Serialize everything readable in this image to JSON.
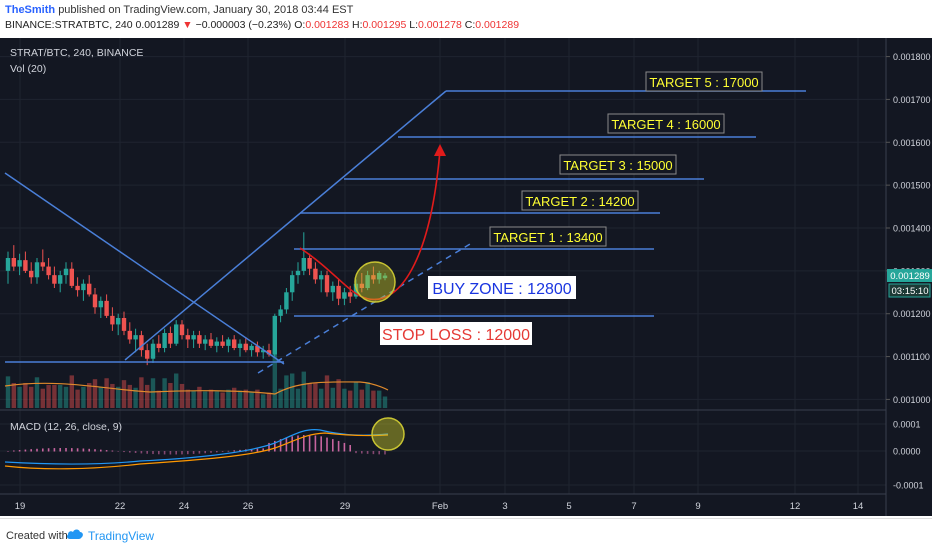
{
  "header": {
    "author": "TheSmith",
    "published_text": "published on TradingView.com, January 30, 2018 03:44 EST",
    "symbol_line": "BINANCE:STRATBTC, 240",
    "last": "0.001289",
    "change_arrow": "▼",
    "change": "−0.000003 (−0.23%)",
    "o_label": "O:",
    "o_value": "0.001283",
    "h_label": "H:",
    "h_value": "0.001295",
    "l_label": "L:",
    "l_value": "0.001278",
    "c_label": "C:",
    "c_value": "0.001289"
  },
  "main_pane": {
    "title": "STRAT/BTC, 240, BINANCE",
    "vol_label": "Vol (20)",
    "price_badge": "0.001289",
    "time_badge": "03:15:10",
    "y_ticks": [
      "0.001800",
      "0.001700",
      "0.001600",
      "0.001500",
      "0.001400",
      "0.001300",
      "0.001200",
      "0.001100",
      "0.001000"
    ]
  },
  "macd_pane": {
    "title": "MACD (12, 26, close, 9)",
    "y_ticks": [
      "0.0001",
      "0.0000",
      "-0.0001"
    ]
  },
  "x_axis": {
    "ticks": [
      "19",
      "22",
      "24",
      "26",
      "29",
      "Feb",
      "3",
      "5",
      "7",
      "9",
      "12",
      "14"
    ]
  },
  "annotations": {
    "target5": "TARGET 5 : 17000",
    "target4": "TARGET 4 : 16000",
    "target3": "TARGET 3 : 15000",
    "target2": "TARGET 2 : 14200",
    "target1": "TARGET 1 : 13400",
    "buy_zone": "BUY ZONE : 12800",
    "stop_loss": "STOP LOSS : 12000"
  },
  "footer": {
    "created_with": "Created with",
    "brand": "TradingView"
  },
  "colors": {
    "background": "#131722",
    "line": "#4a7fd8",
    "up": "#26a69a",
    "down": "#ef5350",
    "target_text": "#ffff33",
    "buy_zone_text": "#1a35e0",
    "stop_loss_text": "#e53935"
  },
  "chart_data": {
    "type": "candlestick",
    "title": "STRAT/BTC, 240, BINANCE",
    "y_range": [
      0.00098,
      0.00182
    ],
    "x_ticks": [
      "19",
      "22",
      "24",
      "26",
      "29",
      "Feb",
      "3",
      "5",
      "7",
      "9",
      "12",
      "14"
    ],
    "last_price": 0.001289,
    "ohlc_last": {
      "open": 0.001283,
      "high": 0.001295,
      "low": 0.001278,
      "close": 0.001289
    },
    "levels": [
      {
        "label": "TARGET 5 : 17000",
        "price": 0.0017
      },
      {
        "label": "TARGET 4 : 16000",
        "price": 0.0016
      },
      {
        "label": "TARGET 3 : 15000",
        "price": 0.0015
      },
      {
        "label": "TARGET 2 : 14200",
        "price": 0.00142
      },
      {
        "label": "TARGET 1 : 13400",
        "price": 0.00134
      },
      {
        "label": "BUY ZONE : 12800",
        "price": 0.00128
      },
      {
        "label": "STOP LOSS : 12000",
        "price": 0.0012
      }
    ],
    "candles": [
      {
        "o": 0.0013,
        "h": 0.001345,
        "l": 0.00127,
        "c": 0.00133
      },
      {
        "o": 0.00133,
        "h": 0.00136,
        "l": 0.0013,
        "c": 0.00131
      },
      {
        "o": 0.00131,
        "h": 0.00134,
        "l": 0.00129,
        "c": 0.001325
      },
      {
        "o": 0.001325,
        "h": 0.001345,
        "l": 0.001295,
        "c": 0.0013
      },
      {
        "o": 0.0013,
        "h": 0.00132,
        "l": 0.00127,
        "c": 0.001285
      },
      {
        "o": 0.001285,
        "h": 0.00133,
        "l": 0.00127,
        "c": 0.00132
      },
      {
        "o": 0.00132,
        "h": 0.00135,
        "l": 0.0013,
        "c": 0.00131
      },
      {
        "o": 0.00131,
        "h": 0.00133,
        "l": 0.00128,
        "c": 0.00129
      },
      {
        "o": 0.00129,
        "h": 0.00131,
        "l": 0.00126,
        "c": 0.00127
      },
      {
        "o": 0.00127,
        "h": 0.0013,
        "l": 0.00125,
        "c": 0.00129
      },
      {
        "o": 0.00129,
        "h": 0.00132,
        "l": 0.00127,
        "c": 0.001305
      },
      {
        "o": 0.001305,
        "h": 0.00132,
        "l": 0.00126,
        "c": 0.001265
      },
      {
        "o": 0.001265,
        "h": 0.001285,
        "l": 0.00124,
        "c": 0.001255
      },
      {
        "o": 0.001255,
        "h": 0.00128,
        "l": 0.00123,
        "c": 0.00127
      },
      {
        "o": 0.00127,
        "h": 0.00129,
        "l": 0.00124,
        "c": 0.001245
      },
      {
        "o": 0.001245,
        "h": 0.00126,
        "l": 0.0012,
        "c": 0.001215
      },
      {
        "o": 0.001215,
        "h": 0.00124,
        "l": 0.00119,
        "c": 0.00123
      },
      {
        "o": 0.00123,
        "h": 0.001245,
        "l": 0.00119,
        "c": 0.001195
      },
      {
        "o": 0.001195,
        "h": 0.001215,
        "l": 0.00116,
        "c": 0.001175
      },
      {
        "o": 0.001175,
        "h": 0.0012,
        "l": 0.00115,
        "c": 0.00119
      },
      {
        "o": 0.00119,
        "h": 0.001205,
        "l": 0.00115,
        "c": 0.00116
      },
      {
        "o": 0.00116,
        "h": 0.00118,
        "l": 0.00113,
        "c": 0.00114
      },
      {
        "o": 0.00114,
        "h": 0.001165,
        "l": 0.00111,
        "c": 0.00115
      },
      {
        "o": 0.00115,
        "h": 0.00116,
        "l": 0.0011,
        "c": 0.001115
      },
      {
        "o": 0.001115,
        "h": 0.00113,
        "l": 0.00108,
        "c": 0.001095
      },
      {
        "o": 0.001095,
        "h": 0.00114,
        "l": 0.001085,
        "c": 0.00113
      },
      {
        "o": 0.00113,
        "h": 0.00115,
        "l": 0.00111,
        "c": 0.00112
      },
      {
        "o": 0.00112,
        "h": 0.001165,
        "l": 0.00111,
        "c": 0.001155
      },
      {
        "o": 0.001155,
        "h": 0.00117,
        "l": 0.00112,
        "c": 0.00113
      },
      {
        "o": 0.00113,
        "h": 0.001185,
        "l": 0.001125,
        "c": 0.001175
      },
      {
        "o": 0.001175,
        "h": 0.001185,
        "l": 0.00114,
        "c": 0.00115
      },
      {
        "o": 0.00115,
        "h": 0.001165,
        "l": 0.00112,
        "c": 0.00114
      },
      {
        "o": 0.00114,
        "h": 0.00116,
        "l": 0.00112,
        "c": 0.00115
      },
      {
        "o": 0.00115,
        "h": 0.00116,
        "l": 0.00112,
        "c": 0.00113
      },
      {
        "o": 0.00113,
        "h": 0.00115,
        "l": 0.001115,
        "c": 0.00114
      },
      {
        "o": 0.00114,
        "h": 0.001155,
        "l": 0.00112,
        "c": 0.001125
      },
      {
        "o": 0.001125,
        "h": 0.001145,
        "l": 0.00111,
        "c": 0.001135
      },
      {
        "o": 0.001135,
        "h": 0.00115,
        "l": 0.00112,
        "c": 0.001125
      },
      {
        "o": 0.001125,
        "h": 0.001145,
        "l": 0.00111,
        "c": 0.00114
      },
      {
        "o": 0.00114,
        "h": 0.00115,
        "l": 0.001115,
        "c": 0.00112
      },
      {
        "o": 0.00112,
        "h": 0.00114,
        "l": 0.0011,
        "c": 0.00113
      },
      {
        "o": 0.00113,
        "h": 0.001145,
        "l": 0.00111,
        "c": 0.001115
      },
      {
        "o": 0.001115,
        "h": 0.00113,
        "l": 0.0011,
        "c": 0.001125
      },
      {
        "o": 0.001125,
        "h": 0.001135,
        "l": 0.0011,
        "c": 0.00111
      },
      {
        "o": 0.00111,
        "h": 0.001125,
        "l": 0.001095,
        "c": 0.001115
      },
      {
        "o": 0.001115,
        "h": 0.00113,
        "l": 0.0011,
        "c": 0.001105
      },
      {
        "o": 0.001105,
        "h": 0.0012,
        "l": 0.0011,
        "c": 0.001195
      },
      {
        "o": 0.001195,
        "h": 0.00122,
        "l": 0.00118,
        "c": 0.00121
      },
      {
        "o": 0.00121,
        "h": 0.00126,
        "l": 0.0012,
        "c": 0.00125
      },
      {
        "o": 0.00125,
        "h": 0.0013,
        "l": 0.00123,
        "c": 0.00129
      },
      {
        "o": 0.00129,
        "h": 0.00132,
        "l": 0.00127,
        "c": 0.0013
      },
      {
        "o": 0.0013,
        "h": 0.00139,
        "l": 0.00129,
        "c": 0.00133
      },
      {
        "o": 0.00133,
        "h": 0.00134,
        "l": 0.00129,
        "c": 0.001305
      },
      {
        "o": 0.001305,
        "h": 0.00132,
        "l": 0.00127,
        "c": 0.00128
      },
      {
        "o": 0.00128,
        "h": 0.0013,
        "l": 0.00125,
        "c": 0.00129
      },
      {
        "o": 0.00129,
        "h": 0.0013,
        "l": 0.00124,
        "c": 0.00125
      },
      {
        "o": 0.00125,
        "h": 0.001275,
        "l": 0.00123,
        "c": 0.001265
      },
      {
        "o": 0.001265,
        "h": 0.00128,
        "l": 0.00122,
        "c": 0.001235
      },
      {
        "o": 0.001235,
        "h": 0.00126,
        "l": 0.00122,
        "c": 0.00125
      },
      {
        "o": 0.00125,
        "h": 0.001265,
        "l": 0.001225,
        "c": 0.00124
      },
      {
        "o": 0.00124,
        "h": 0.00128,
        "l": 0.001235,
        "c": 0.00127
      },
      {
        "o": 0.00127,
        "h": 0.001295,
        "l": 0.00125,
        "c": 0.00126
      },
      {
        "o": 0.00126,
        "h": 0.0013,
        "l": 0.001255,
        "c": 0.00129
      },
      {
        "o": 0.00129,
        "h": 0.00131,
        "l": 0.00127,
        "c": 0.00128
      },
      {
        "o": 0.00128,
        "h": 0.0013,
        "l": 0.00127,
        "c": 0.001295
      },
      {
        "o": 0.001283,
        "h": 0.001295,
        "l": 0.001278,
        "c": 0.001289
      }
    ]
  }
}
